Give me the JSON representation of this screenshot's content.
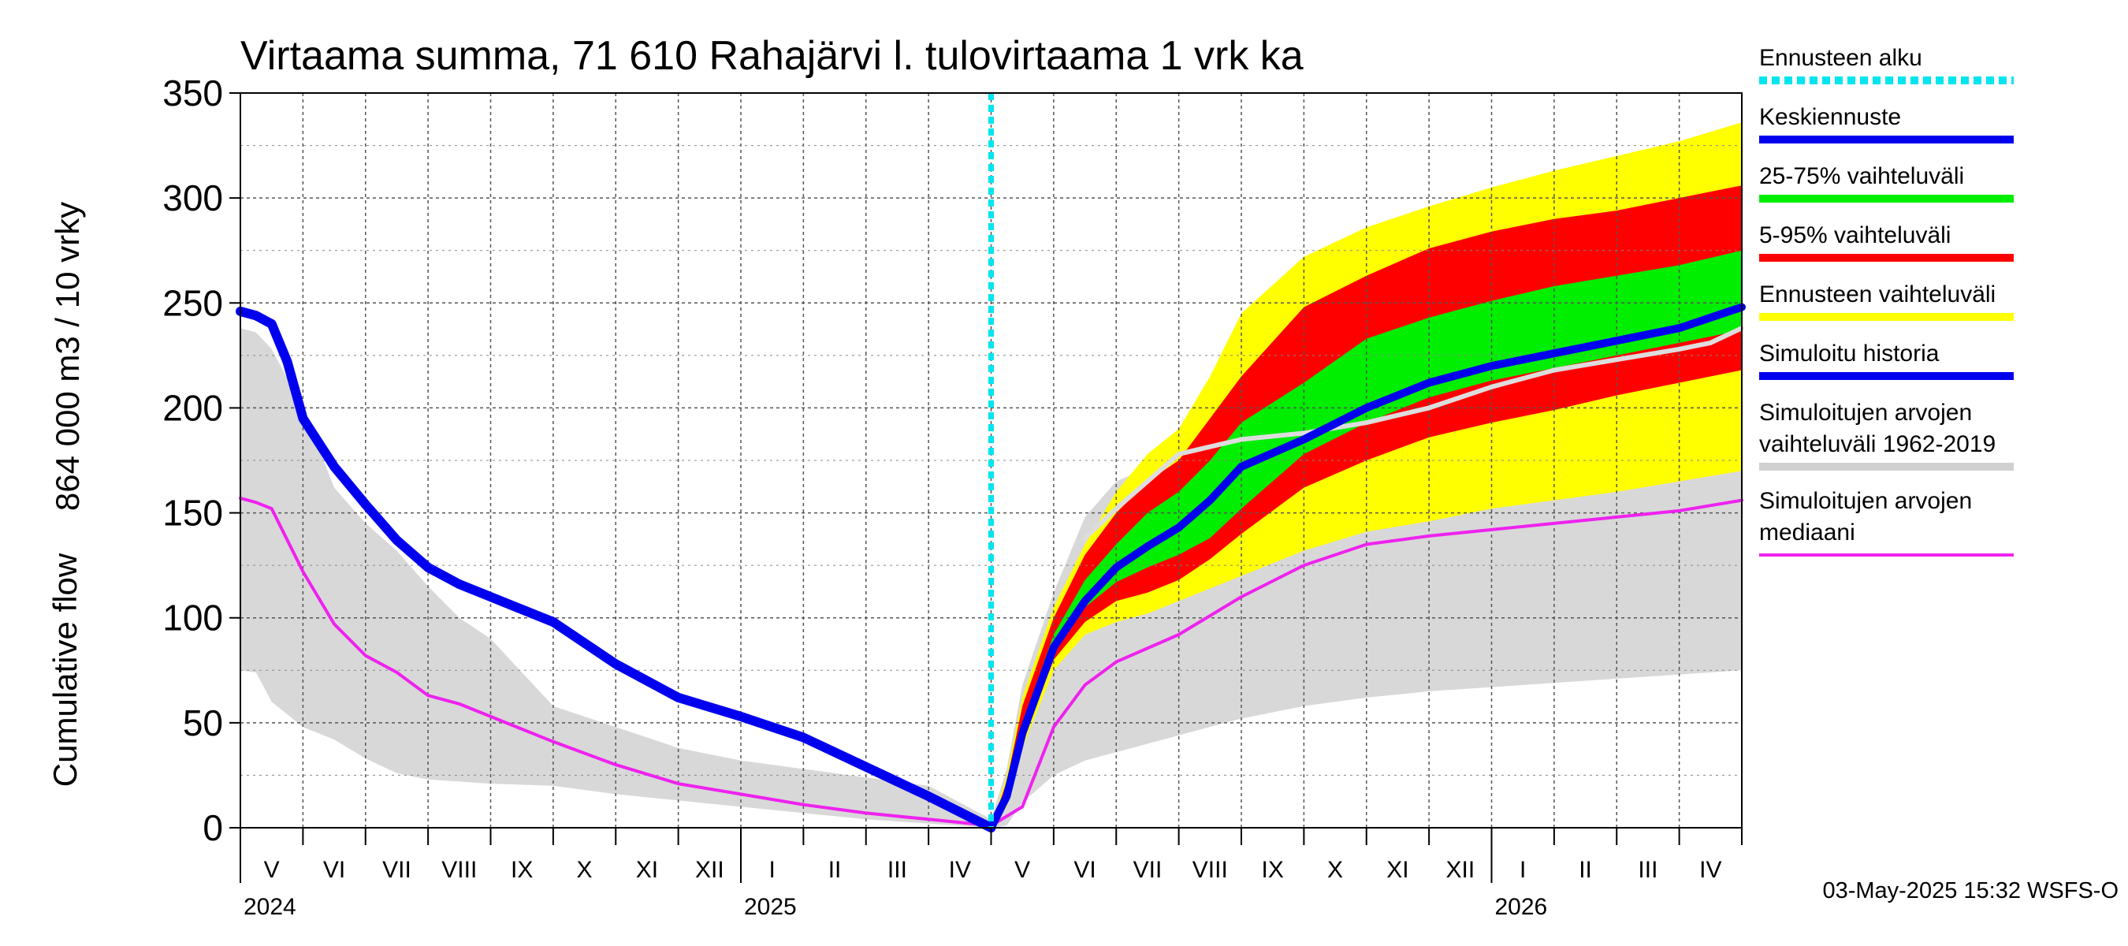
{
  "chart_data": {
    "type": "area",
    "title": "Virtaama summa, 71 610 Rahajärvi l. tulovirtaama 1 vrk ka",
    "ylabel_fi": "864 000 m3 / 10 vrky",
    "ylabel_en": "Cumulative flow",
    "ylim": [
      0,
      350
    ],
    "yticks": [
      "0",
      "50",
      "100",
      "150",
      "200",
      "250",
      "300",
      "350"
    ],
    "xlim": [
      0,
      24
    ],
    "grid": true,
    "months": [
      "V",
      "VI",
      "VII",
      "VIII",
      "IX",
      "X",
      "XI",
      "XII",
      "I",
      "II",
      "III",
      "IV",
      "V",
      "VI",
      "VII",
      "VIII",
      "IX",
      "X",
      "XI",
      "XII",
      "I",
      "II",
      "III",
      "IV"
    ],
    "years": [
      {
        "label": "2024",
        "x": 0
      },
      {
        "label": "2025",
        "x": 8
      },
      {
        "label": "2026",
        "x": 20
      }
    ],
    "forecast_start_x": 12,
    "series": [
      {
        "name": "Simuloitujen arvojen vaihteluväli 1962-2019",
        "kind": "band",
        "color": "#d8d8d8",
        "x": [
          0,
          0.25,
          0.5,
          1,
          1.5,
          2,
          2.5,
          3,
          3.5,
          4,
          5,
          6,
          7,
          8,
          9,
          10,
          11,
          12,
          12.25,
          12.5,
          13,
          13.5,
          14,
          15,
          16,
          17,
          18,
          19,
          20,
          21,
          22,
          23,
          24
        ],
        "upper": [
          238,
          236,
          228,
          200,
          162,
          145,
          132,
          115,
          100,
          90,
          58,
          48,
          38,
          32,
          28,
          24,
          20,
          4,
          28,
          68,
          112,
          148,
          165,
          178,
          183,
          186,
          189,
          193,
          197,
          201,
          205,
          208,
          211
        ],
        "lower": [
          75,
          74,
          60,
          48,
          42,
          33,
          26,
          23,
          22,
          21,
          20,
          16,
          13,
          10,
          7,
          4,
          2,
          0,
          1,
          12,
          25,
          32,
          36,
          44,
          52,
          58,
          62,
          65,
          67,
          69,
          71,
          73,
          75
        ]
      },
      {
        "name": "Ennusteen vaihteluväli",
        "kind": "band",
        "color": "#ffff00",
        "x": [
          12,
          12.25,
          12.5,
          13,
          13.5,
          14,
          14.5,
          15,
          15.5,
          16,
          17,
          18,
          19,
          20,
          21,
          22,
          23,
          24
        ],
        "upper": [
          0,
          25,
          62,
          105,
          135,
          160,
          178,
          190,
          215,
          245,
          272,
          286,
          296,
          305,
          313,
          320,
          327,
          336
        ],
        "lower": [
          0,
          10,
          38,
          75,
          92,
          98,
          102,
          108,
          114,
          120,
          132,
          141,
          146,
          152,
          156,
          160,
          165,
          170
        ]
      },
      {
        "name": "5-95% vaihteluväli",
        "kind": "band",
        "color": "#ff0000",
        "x": [
          12,
          12.25,
          12.5,
          13,
          13.5,
          14,
          14.5,
          15,
          15.5,
          16,
          17,
          18,
          19,
          20,
          21,
          22,
          23,
          24
        ],
        "upper": [
          0,
          22,
          58,
          100,
          130,
          150,
          165,
          175,
          195,
          215,
          248,
          263,
          276,
          284,
          290,
          294,
          300,
          306
        ],
        "lower": [
          0,
          12,
          42,
          80,
          98,
          108,
          112,
          118,
          128,
          140,
          162,
          175,
          186,
          193,
          199,
          206,
          212,
          218
        ]
      },
      {
        "name": "25-75% vaihteluväli",
        "kind": "band",
        "color": "#00ee00",
        "x": [
          12,
          12.25,
          12.5,
          13,
          13.5,
          14,
          14.5,
          15,
          15.5,
          16,
          17,
          18,
          19,
          20,
          21,
          22,
          23,
          24
        ],
        "upper": [
          0,
          19,
          50,
          92,
          118,
          135,
          150,
          160,
          175,
          193,
          212,
          233,
          243,
          251,
          258,
          263,
          268,
          275
        ],
        "lower": [
          0,
          14,
          45,
          85,
          105,
          117,
          124,
          130,
          138,
          152,
          178,
          193,
          205,
          213,
          219,
          225,
          231,
          237
        ]
      },
      {
        "name": "Simuloitujen arvojen mediaani",
        "kind": "line",
        "color": "#ee22ee",
        "width": 4,
        "x": [
          0,
          0.25,
          0.5,
          1,
          1.5,
          2,
          2.5,
          3,
          3.5,
          4,
          5,
          6,
          7,
          8,
          9,
          10,
          11,
          12,
          12.5,
          13,
          13.5,
          14,
          15,
          16,
          17,
          18,
          19,
          20,
          21,
          22,
          23,
          24
        ],
        "y": [
          157,
          155,
          152,
          122,
          97,
          82,
          74,
          63,
          59,
          53,
          41,
          30,
          21,
          16,
          11,
          7,
          4,
          1,
          10,
          48,
          68,
          79,
          92,
          110,
          125,
          135,
          139,
          142,
          145,
          148,
          151,
          156
        ]
      },
      {
        "name": "Simuloitu historia",
        "kind": "line",
        "color": "#0000ee",
        "width": 12,
        "x": [
          0,
          0.25,
          0.5,
          0.75,
          1,
          1.5,
          2,
          2.5,
          3,
          3.5,
          4,
          5,
          6,
          7,
          8,
          9,
          10,
          11,
          12
        ],
        "y": [
          246,
          244,
          240,
          222,
          195,
          172,
          154,
          137,
          124,
          116,
          110,
          98,
          78,
          62,
          53,
          43,
          29,
          15,
          0
        ]
      },
      {
        "name": "Simuloitujen arvojen vaihteluväli 1962-2019 (mediaaniennuste)",
        "kind": "line",
        "color": "#dddddd",
        "width": 6,
        "x": [
          13.5,
          14,
          14.5,
          15,
          16,
          17,
          18,
          19,
          20,
          21,
          22,
          23,
          23.5,
          24
        ],
        "y": [
          138,
          152,
          165,
          178,
          185,
          188,
          193,
          200,
          210,
          218,
          223,
          228,
          231,
          238
        ]
      },
      {
        "name": "Keskiennuste",
        "kind": "line",
        "color": "#0000ee",
        "width": 10,
        "x": [
          12,
          12.25,
          12.5,
          13,
          13.5,
          14,
          14.5,
          15,
          15.5,
          16,
          17,
          18,
          19,
          20,
          21,
          22,
          23,
          23.5,
          24
        ],
        "y": [
          0,
          15,
          45,
          86,
          108,
          124,
          134,
          143,
          156,
          172,
          185,
          200,
          212,
          220,
          226,
          232,
          238,
          243,
          248
        ]
      }
    ],
    "legend": [
      {
        "label": "Ennusteen alku",
        "color": "#00e5ee",
        "style": "dotted"
      },
      {
        "label": "Keskiennuste",
        "color": "#0000ee",
        "style": "solid"
      },
      {
        "label": "25-75% vaihteluväli",
        "color": "#00ee00",
        "style": "solid"
      },
      {
        "label": "5-95% vaihteluväli",
        "color": "#ff0000",
        "style": "solid"
      },
      {
        "label": "Ennusteen vaihteluväli",
        "color": "#ffff00",
        "style": "solid"
      },
      {
        "label": "Simuloitu historia",
        "color": "#0000ee",
        "style": "solid"
      },
      {
        "label": "Simuloitujen arvojen\nvaihteluväli 1962-2019",
        "color": "#d0d0d0",
        "style": "solid"
      },
      {
        "label": "Simuloitujen arvojen\nmediaani",
        "color": "#ee22ee",
        "style": "thin"
      }
    ],
    "footer": "03-May-2025 15:32 WSFS-O"
  }
}
